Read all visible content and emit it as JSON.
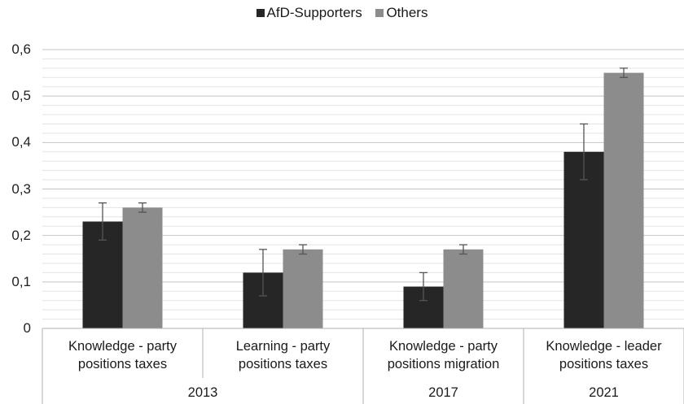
{
  "chart_data": {
    "type": "bar",
    "legend_position": "top-center",
    "grid": true,
    "ylim": [
      0,
      0.6
    ],
    "yticks": [
      "0",
      "0,1",
      "0,2",
      "0,3",
      "0,4",
      "0,5",
      "0,6"
    ],
    "categories": [
      {
        "line1": "Knowledge - party",
        "line2": "positions taxes"
      },
      {
        "line1": "Learning - party",
        "line2": "positions taxes"
      },
      {
        "line1": "Knowledge - party",
        "line2": "positions migration"
      },
      {
        "line1": "Knowledge - leader",
        "line2": "positions taxes"
      }
    ],
    "groups": [
      {
        "label": "2013",
        "span": [
          0,
          1
        ]
      },
      {
        "label": "2017",
        "span": [
          2,
          2
        ]
      },
      {
        "label": "2021",
        "span": [
          3,
          3
        ]
      }
    ],
    "series": [
      {
        "name": "AfD-Supporters",
        "color": "#262626",
        "values": [
          0.23,
          0.12,
          0.09,
          0.38
        ],
        "error_low": [
          0.19,
          0.07,
          0.06,
          0.32
        ],
        "error_high": [
          0.27,
          0.17,
          0.12,
          0.44
        ]
      },
      {
        "name": "Others",
        "color": "#8c8c8c",
        "values": [
          0.26,
          0.17,
          0.17,
          0.55
        ],
        "error_low": [
          0.25,
          0.16,
          0.16,
          0.54
        ],
        "error_high": [
          0.27,
          0.18,
          0.18,
          0.56
        ]
      }
    ]
  }
}
